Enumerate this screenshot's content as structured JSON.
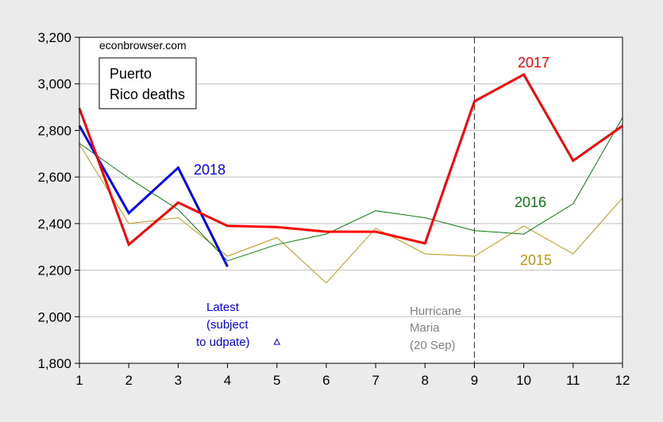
{
  "chart_data": {
    "type": "line",
    "source": "econbrowser.com",
    "title_lines": [
      "Puerto",
      "Rico deaths"
    ],
    "x": [
      1,
      2,
      3,
      4,
      5,
      6,
      7,
      8,
      9,
      10,
      11,
      12
    ],
    "xlim": [
      1,
      12
    ],
    "ylim": [
      1800,
      3200
    ],
    "yticks": [
      1800,
      2000,
      2200,
      2400,
      2600,
      2800,
      3000,
      3200
    ],
    "ytick_labels": [
      "1,800",
      "2,000",
      "2,200",
      "2,400",
      "2,600",
      "2,800",
      "3,000",
      "3,200"
    ],
    "xtick_labels": [
      "1",
      "2",
      "3",
      "4",
      "5",
      "6",
      "7",
      "8",
      "9",
      "10",
      "11",
      "12"
    ],
    "grid": true,
    "series": [
      {
        "name": "2015",
        "color": "#b8970f",
        "width": 1,
        "x": [
          1,
          2,
          3,
          4,
          5,
          6,
          7,
          8,
          9,
          10,
          11,
          12
        ],
        "values": [
          2740,
          2400,
          2425,
          2260,
          2340,
          2145,
          2380,
          2270,
          2260,
          2390,
          2270,
          2510
        ]
      },
      {
        "name": "2016",
        "color": "#0a7a0a",
        "width": 1,
        "x": [
          1,
          2,
          3,
          4,
          5,
          6,
          7,
          8,
          9,
          10,
          11,
          12
        ],
        "values": [
          2745,
          2595,
          2460,
          2240,
          2310,
          2355,
          2455,
          2425,
          2370,
          2355,
          2485,
          2855
        ]
      },
      {
        "name": "2018",
        "color": "#0000ff",
        "width": 3,
        "x": [
          1,
          2,
          3,
          4
        ],
        "values": [
          2820,
          2445,
          2640,
          2215
        ]
      },
      {
        "name": "2017",
        "color": "#ff0000",
        "width": 3,
        "x": [
          1,
          2,
          3,
          4,
          5,
          6,
          7,
          8,
          9,
          10,
          11,
          12
        ],
        "values": [
          2895,
          2310,
          2490,
          2390,
          2385,
          2365,
          2365,
          2315,
          2925,
          3040,
          2670,
          2820
        ]
      }
    ],
    "vline": {
      "x": 9,
      "style": "dashed"
    },
    "annotations": {
      "hurricane": [
        "Hurricane",
        "Maria",
        "(20 Sep)"
      ],
      "latest": [
        "Latest",
        "(subject",
        "to udpate)"
      ],
      "latest_marker": {
        "x": 5,
        "y": 1890,
        "color": "#0000ff"
      }
    }
  }
}
